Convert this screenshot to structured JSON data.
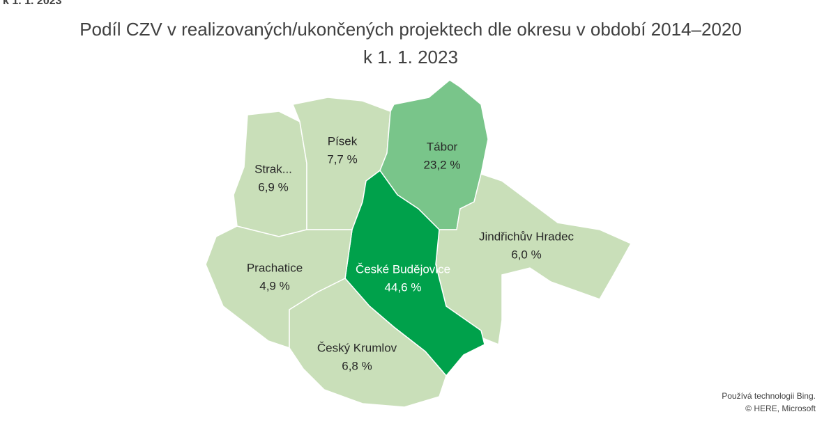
{
  "header": "k 1. 1. 2023",
  "chart_data": {
    "type": "map",
    "title": "Podíl CZV v realizovaných/ukončených projektech dle okresu v období 2014–2020",
    "subtitle": "k 1. 1. 2023",
    "categories": [
      "Strak...",
      "Písek",
      "Tábor",
      "Jindřichův Hradec",
      "České Budějovice",
      "Prachatice",
      "Český Krumlov"
    ],
    "values": [
      6.9,
      7.7,
      23.2,
      6.0,
      44.6,
      4.9,
      6.8
    ],
    "value_labels": [
      "6,9 %",
      "7,7 %",
      "23,2 %",
      "6,0 %",
      "44,6 %",
      "4,9 %",
      "6,8 %"
    ],
    "colors": [
      "#c9dfb9",
      "#c9dfb9",
      "#79c58a",
      "#c9dfb9",
      "#00a14b",
      "#c9dfb9",
      "#c9dfb9"
    ],
    "attribution": [
      "Používá technologii Bing.",
      "© HERE, Microsoft"
    ]
  }
}
